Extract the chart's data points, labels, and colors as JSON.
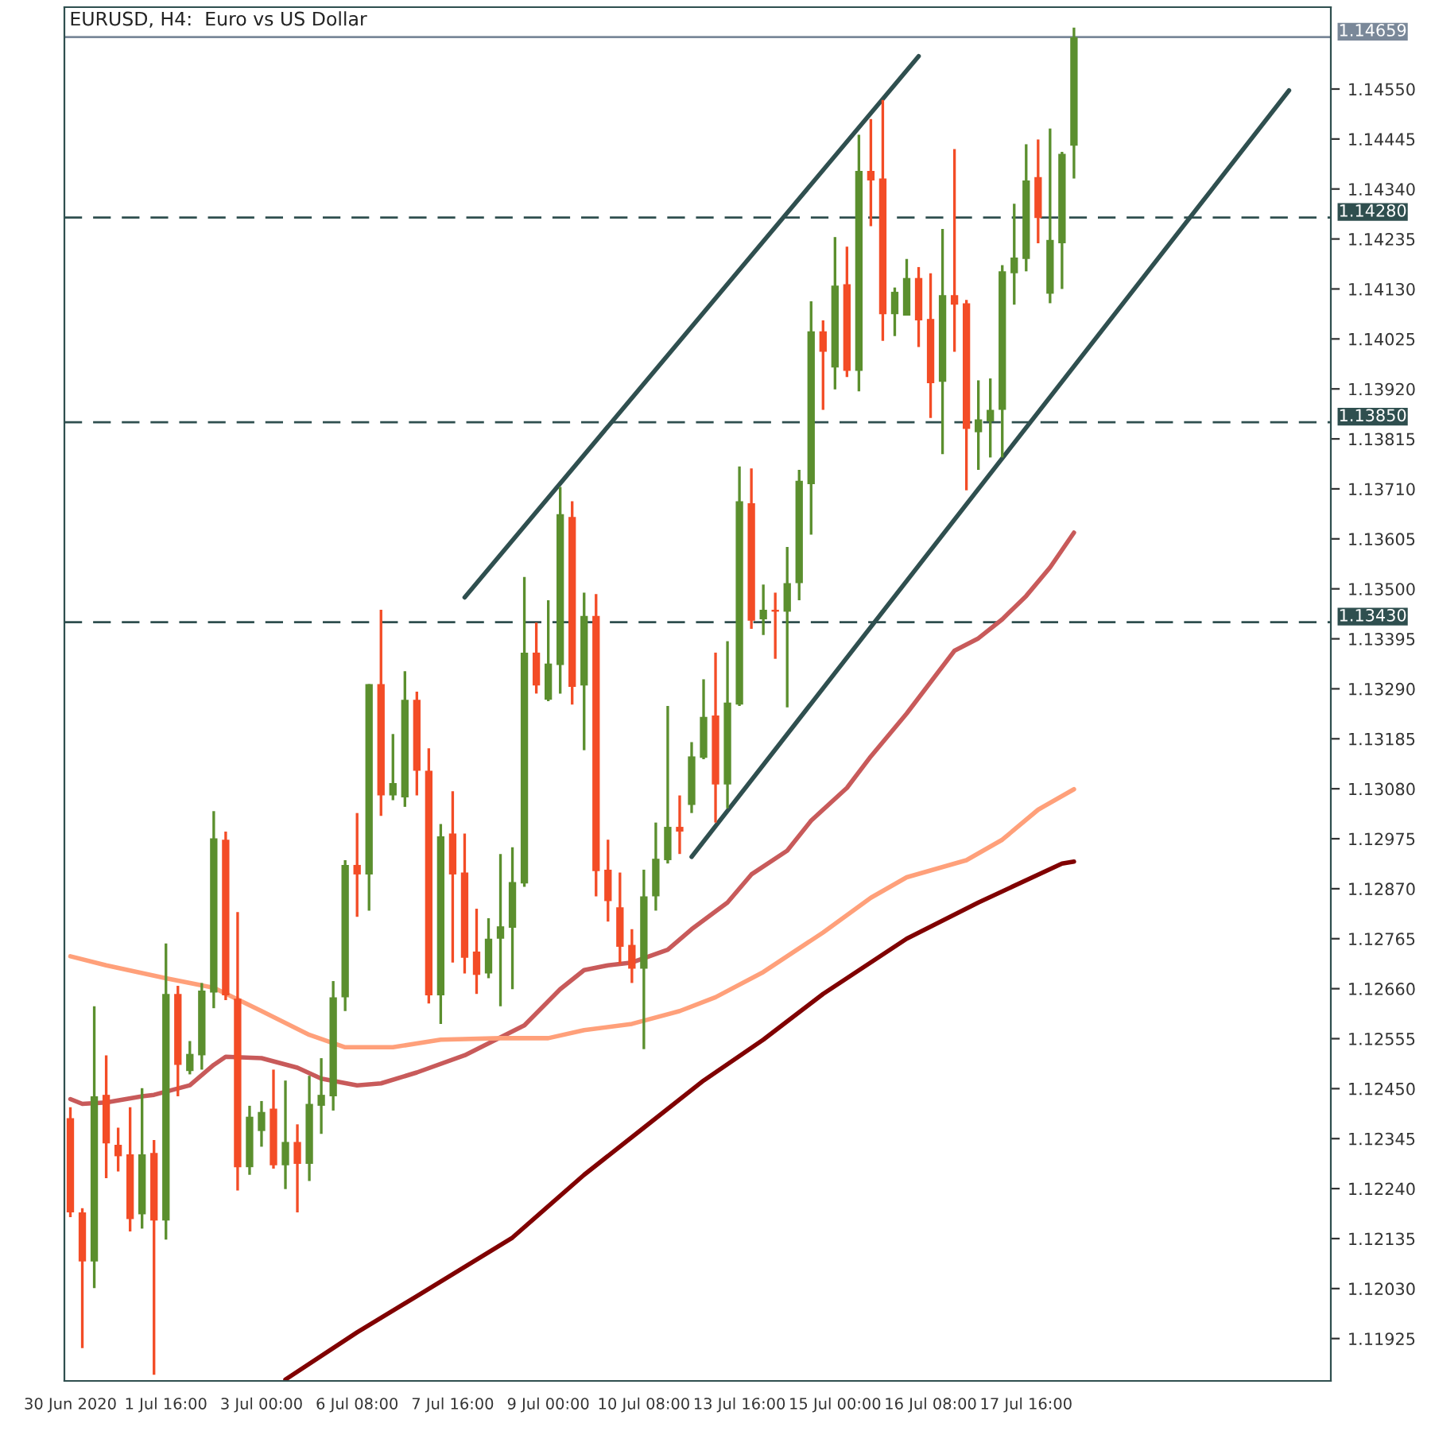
{
  "chart_data": {
    "type": "candlestick",
    "title": "EURUSD, H4:  Euro vs US Dollar",
    "categories": [
      "30 Jun 2020",
      null,
      null,
      null,
      null,
      null,
      null,
      null,
      "1 Jul 16:00",
      null,
      null,
      null,
      null,
      null,
      null,
      null,
      "3 Jul 00:00",
      null,
      null,
      null,
      null,
      null,
      null,
      null,
      "6 Jul 08:00",
      null,
      null,
      null,
      null,
      null,
      null,
      null,
      "7 Jul 16:00",
      null,
      null,
      null,
      null,
      null,
      null,
      null,
      "9 Jul 00:00",
      null,
      null,
      null,
      null,
      null,
      null,
      null,
      "10 Jul 08:00",
      null,
      null,
      null,
      null,
      null,
      null,
      null,
      "13 Jul 16:00",
      null,
      null,
      null,
      null,
      null,
      null,
      null,
      "15 Jul 00:00",
      null,
      null,
      null,
      null,
      null,
      null,
      null,
      "16 Jul 08:00",
      null,
      null,
      null,
      null,
      null,
      null,
      null,
      "17 Jul 16:00",
      null,
      null,
      null,
      null,
      null,
      null,
      null,
      null,
      null,
      null,
      null,
      null,
      null,
      null,
      null,
      null,
      null,
      null,
      null,
      null,
      null,
      null,
      null,
      null,
      null
    ],
    "ohlc": [
      [
        1.12388,
        1.12411,
        1.1218,
        1.1219
      ],
      [
        1.1219,
        1.12199,
        1.11905,
        1.12087
      ],
      [
        1.12087,
        1.12623,
        1.12031,
        1.12434
      ],
      [
        1.12437,
        1.1252,
        1.12262,
        1.12335
      ],
      [
        1.12332,
        1.12368,
        1.12276,
        1.12308
      ],
      [
        1.12312,
        1.12411,
        1.1215,
        1.12176
      ],
      [
        1.12186,
        1.12451,
        1.12156,
        1.12312
      ],
      [
        1.12315,
        1.12342,
        1.11849,
        1.12173
      ],
      [
        1.12173,
        1.12755,
        1.12133,
        1.12649
      ],
      [
        1.12649,
        1.12666,
        1.12434,
        1.125
      ],
      [
        1.12487,
        1.1255,
        1.1248,
        1.12523
      ],
      [
        1.1252,
        1.12672,
        1.1249,
        1.12656
      ],
      [
        1.12652,
        1.13033,
        1.12619,
        1.12976
      ],
      [
        1.12973,
        1.1299,
        1.12636,
        1.12646
      ],
      [
        1.12639,
        1.12821,
        1.12236,
        1.12285
      ],
      [
        1.12285,
        1.12414,
        1.12269,
        1.12391
      ],
      [
        1.12361,
        1.12424,
        1.12328,
        1.12401
      ],
      [
        1.12408,
        1.1249,
        1.12282,
        1.12289
      ],
      [
        1.12289,
        1.12467,
        1.12239,
        1.12338
      ],
      [
        1.12338,
        1.12375,
        1.1219,
        1.12292
      ],
      [
        1.12292,
        1.12477,
        1.12256,
        1.12418
      ],
      [
        1.12414,
        1.12514,
        1.12355,
        1.12437
      ],
      [
        1.12434,
        1.12676,
        1.12404,
        1.12642
      ],
      [
        1.12642,
        1.1293,
        1.12613,
        1.1292
      ],
      [
        1.1292,
        1.13029,
        1.12811,
        1.129
      ],
      [
        1.129,
        1.133,
        1.12824,
        1.133
      ],
      [
        1.133,
        1.13456,
        1.13023,
        1.13066
      ],
      [
        1.13066,
        1.13195,
        1.13056,
        1.13092
      ],
      [
        1.13062,
        1.13327,
        1.13042,
        1.13267
      ],
      [
        1.13267,
        1.13284,
        1.13066,
        1.13118
      ],
      [
        1.13118,
        1.13165,
        1.12629,
        1.12646
      ],
      [
        1.12646,
        1.13006,
        1.12586,
        1.1298
      ],
      [
        1.12986,
        1.13075,
        1.12715,
        1.129
      ],
      [
        1.12904,
        1.12986,
        1.12692,
        1.12725
      ],
      [
        1.12738,
        1.12828,
        1.12649,
        1.12689
      ],
      [
        1.12692,
        1.12808,
        1.12682,
        1.12765
      ],
      [
        1.12765,
        1.12943,
        1.12623,
        1.12791
      ],
      [
        1.12788,
        1.12957,
        1.12659,
        1.12884
      ],
      [
        1.12881,
        1.13525,
        1.12874,
        1.13366
      ],
      [
        1.13366,
        1.13429,
        1.1328,
        1.13297
      ],
      [
        1.13267,
        1.13476,
        1.13264,
        1.13343
      ],
      [
        1.1334,
        1.13714,
        1.1328,
        1.13657
      ],
      [
        1.13651,
        1.13684,
        1.13257,
        1.13294
      ],
      [
        1.13297,
        1.13492,
        1.13161,
        1.13443
      ],
      [
        1.13443,
        1.13489,
        1.12854,
        1.12907
      ],
      [
        1.1291,
        1.12973,
        1.12801,
        1.12844
      ],
      [
        1.12831,
        1.12904,
        1.12712,
        1.12748
      ],
      [
        1.12752,
        1.12785,
        1.12672,
        1.12702
      ],
      [
        1.12702,
        1.1291,
        1.12533,
        1.12854
      ],
      [
        1.12854,
        1.13009,
        1.12824,
        1.12933
      ],
      [
        1.1293,
        1.13254,
        1.12923,
        1.13
      ],
      [
        1.13,
        1.13066,
        1.12943,
        1.1299
      ],
      [
        1.13046,
        1.13178,
        1.13029,
        1.13148
      ],
      [
        1.13145,
        1.1331,
        1.13142,
        1.13231
      ],
      [
        1.13234,
        1.13366,
        1.13009,
        1.13089
      ],
      [
        1.13089,
        1.1339,
        1.13039,
        1.13261
      ],
      [
        1.13257,
        1.13757,
        1.13254,
        1.13684
      ],
      [
        1.1368,
        1.13753,
        1.13416,
        1.13433
      ],
      [
        1.13436,
        1.13509,
        1.13403,
        1.13456
      ],
      [
        1.13456,
        1.13492,
        1.13353,
        1.13452
      ],
      [
        1.13452,
        1.13588,
        1.13251,
        1.13512
      ],
      [
        1.13512,
        1.1375,
        1.13476,
        1.13727
      ],
      [
        1.1372,
        1.14104,
        1.13614,
        1.14041
      ],
      [
        1.14041,
        1.14064,
        1.13876,
        1.13998
      ],
      [
        1.13965,
        1.14239,
        1.13919,
        1.14137
      ],
      [
        1.1414,
        1.14219,
        1.13945,
        1.13958
      ],
      [
        1.13958,
        1.14454,
        1.13915,
        1.14378
      ],
      [
        1.14378,
        1.14487,
        1.14262,
        1.14358
      ],
      [
        1.14362,
        1.14527,
        1.14021,
        1.14077
      ],
      [
        1.14077,
        1.14133,
        1.14031,
        1.14124
      ],
      [
        1.14074,
        1.14193,
        1.14074,
        1.14153
      ],
      [
        1.14153,
        1.14176,
        1.14008,
        1.14064
      ],
      [
        1.14067,
        1.14163,
        1.13859,
        1.13932
      ],
      [
        1.13935,
        1.14256,
        1.13783,
        1.14117
      ],
      [
        1.14117,
        1.14424,
        1.13998,
        1.14097
      ],
      [
        1.141,
        1.14107,
        1.13707,
        1.13836
      ],
      [
        1.13829,
        1.13938,
        1.1375,
        1.13856
      ],
      [
        1.13852,
        1.13942,
        1.13776,
        1.13876
      ],
      [
        1.13876,
        1.1418,
        1.13776,
        1.14167
      ],
      [
        1.14163,
        1.14309,
        1.14097,
        1.14196
      ],
      [
        1.14193,
        1.14434,
        1.14167,
        1.14358
      ],
      [
        1.14365,
        1.14444,
        1.14226,
        1.14279
      ],
      [
        1.1412,
        1.14467,
        1.141,
        1.14233
      ],
      [
        1.14226,
        1.14418,
        1.1413,
        1.14414
      ],
      [
        1.14431,
        1.14679,
        1.14362,
        1.14659
      ],
      null,
      null,
      null,
      null,
      null,
      null,
      null,
      null,
      null,
      null,
      null,
      null,
      null,
      null,
      null,
      null,
      null,
      null,
      null,
      null,
      null
    ],
    "colors": [
      "#f34c26",
      "#f34c26",
      "#5b8f2e",
      "#f34c26",
      "#f34c26",
      "#f34c26",
      "#5b8f2e",
      "#f34c26",
      "#5b8f2e",
      "#f34c26",
      "#5b8f2e",
      "#5b8f2e",
      "#5b8f2e",
      "#f34c26",
      "#f34c26",
      "#5b8f2e",
      "#5b8f2e",
      "#f34c26",
      "#5b8f2e",
      "#f34c26",
      "#5b8f2e",
      "#5b8f2e",
      "#5b8f2e",
      "#5b8f2e",
      "#f34c26",
      "#5b8f2e",
      "#f34c26",
      "#5b8f2e",
      "#5b8f2e",
      "#f34c26",
      "#f34c26",
      "#5b8f2e",
      "#f34c26",
      "#f34c26",
      "#f34c26",
      "#5b8f2e",
      "#5b8f2e",
      "#5b8f2e",
      "#5b8f2e",
      "#f34c26",
      "#5b8f2e",
      "#5b8f2e",
      "#f34c26",
      "#5b8f2e",
      "#f34c26",
      "#f34c26",
      "#f34c26",
      "#f34c26",
      "#5b8f2e",
      "#5b8f2e",
      "#5b8f2e",
      "#f34c26",
      "#5b8f2e",
      "#5b8f2e",
      "#f34c26",
      "#5b8f2e",
      "#5b8f2e",
      "#f34c26",
      "#5b8f2e",
      "#f34c26",
      "#5b8f2e",
      "#5b8f2e",
      "#5b8f2e",
      "#f34c26",
      "#5b8f2e",
      "#f34c26",
      "#5b8f2e",
      "#f34c26",
      "#f34c26",
      "#5b8f2e",
      "#5b8f2e",
      "#f34c26",
      "#f34c26",
      "#5b8f2e",
      "#f34c26",
      "#f34c26",
      "#5b8f2e",
      "#5b8f2e",
      "#5b8f2e",
      "#5b8f2e",
      "#5b8f2e",
      "#f34c26",
      "#5b8f2e",
      "#5b8f2e",
      "#5b8f2e",
      null,
      null,
      null,
      null,
      null,
      null,
      null,
      null,
      null,
      null,
      null,
      null,
      null,
      null,
      null,
      null,
      null,
      null,
      null,
      null,
      null
    ],
    "series": [
      {
        "type": "line",
        "color": "#c85a5a",
        "values": [
          1.12428,
          1.12418,
          null,
          1.12421,
          null,
          null,
          1.12434,
          1.12437,
          null,
          null,
          1.12457,
          null,
          1.125,
          1.12517,
          null,
          null,
          1.12514,
          null,
          null,
          1.12494,
          null,
          1.12471,
          null,
          null,
          1.12457,
          null,
          1.12461,
          null,
          null,
          1.12484,
          null,
          null,
          null,
          1.1252,
          null,
          null,
          null,
          null,
          1.12583,
          null,
          null,
          1.12659,
          null,
          1.12699,
          null,
          1.12709,
          null,
          1.12715,
          null,
          null,
          1.12742,
          null,
          1.12785,
          null,
          null,
          1.12841,
          null,
          1.129,
          null,
          null,
          1.1295,
          null,
          1.13013,
          null,
          null,
          1.13082,
          null,
          1.13148,
          null,
          null,
          1.13238,
          null,
          1.13304,
          null,
          1.1337,
          null,
          1.13396,
          null,
          1.13436,
          null,
          1.13485,
          null,
          1.13545,
          null,
          1.13618,
          null,
          null,
          null,
          null,
          null,
          null,
          null,
          null,
          null,
          null,
          null,
          null,
          null,
          null,
          null,
          null,
          null,
          null,
          null,
          null,
          null
        ]
      },
      {
        "type": "line",
        "color": "#ffa07a",
        "values": [
          1.12728,
          null,
          null,
          1.12709,
          null,
          null,
          null,
          null,
          1.12682,
          null,
          null,
          null,
          1.12662,
          null,
          null,
          null,
          1.12613,
          null,
          null,
          null,
          1.12563,
          null,
          null,
          1.12537,
          null,
          null,
          null,
          1.12537,
          null,
          null,
          null,
          1.12553,
          null,
          null,
          null,
          null,
          1.12556,
          null,
          null,
          null,
          1.12556,
          null,
          null,
          1.12573,
          null,
          null,
          null,
          1.12586,
          null,
          null,
          null,
          1.12613,
          null,
          null,
          1.12642,
          null,
          null,
          null,
          1.12695,
          null,
          null,
          null,
          null,
          1.12778,
          null,
          null,
          null,
          1.12851,
          null,
          null,
          1.12894,
          null,
          null,
          null,
          null,
          1.1293,
          null,
          null,
          1.12973,
          null,
          null,
          1.13036,
          null,
          null,
          1.13079,
          null,
          null,
          null,
          null,
          null,
          null,
          null,
          null,
          null,
          null,
          null,
          null,
          null,
          null,
          null,
          null,
          null,
          null,
          null,
          null,
          null
        ]
      },
      {
        "type": "line",
        "color": "#800000",
        "values": [
          null,
          null,
          null,
          null,
          null,
          null,
          null,
          null,
          null,
          null,
          null,
          null,
          null,
          null,
          null,
          null,
          null,
          null,
          1.11839,
          null,
          null,
          null,
          null,
          null,
          1.11938,
          null,
          null,
          null,
          null,
          1.12014,
          null,
          null,
          null,
          null,
          null,
          null,
          null,
          1.12137,
          null,
          null,
          null,
          null,
          null,
          1.12269,
          null,
          null,
          null,
          null,
          1.12368,
          null,
          null,
          null,
          null,
          1.12467,
          null,
          null,
          null,
          null,
          1.12553,
          null,
          null,
          null,
          null,
          1.12649,
          null,
          null,
          null,
          null,
          null,
          null,
          1.12765,
          null,
          null,
          null,
          null,
          null,
          1.12841,
          null,
          null,
          null,
          null,
          null,
          null,
          1.12923,
          1.12927,
          null,
          null,
          null,
          null,
          null,
          null,
          null,
          null,
          null,
          null,
          null,
          null,
          null,
          null,
          null,
          null,
          null,
          null,
          null,
          null,
          null
        ]
      },
      {
        "type": "line",
        "color": "#2f4f4f",
        "values": [
          null,
          null,
          null,
          null,
          null,
          null,
          null,
          null,
          null,
          null,
          null,
          null,
          null,
          null,
          null,
          null,
          null,
          null,
          null,
          null,
          null,
          null,
          null,
          null,
          null,
          null,
          null,
          null,
          null,
          null,
          null,
          null,
          null,
          1.13482,
          null,
          null,
          null,
          null,
          null,
          null,
          null,
          null,
          null,
          null,
          null,
          null,
          null,
          null,
          null,
          null,
          null,
          null,
          null,
          null,
          null,
          null,
          null,
          null,
          null,
          null,
          null,
          null,
          null,
          null,
          null,
          null,
          null,
          null,
          null,
          null,
          null,
          1.14619,
          null,
          null,
          null,
          null,
          null,
          null,
          null,
          null,
          null,
          null,
          null,
          null,
          null,
          null,
          null,
          null,
          null,
          null,
          null,
          null,
          null,
          null,
          null,
          null,
          null,
          null,
          null,
          null,
          null,
          null,
          null,
          null,
          null,
          null
        ]
      },
      {
        "type": "line",
        "color": "#2f4f4f",
        "values": [
          null,
          null,
          null,
          null,
          null,
          null,
          null,
          null,
          null,
          null,
          null,
          null,
          null,
          null,
          null,
          null,
          null,
          null,
          null,
          null,
          null,
          null,
          null,
          null,
          null,
          null,
          null,
          null,
          null,
          null,
          null,
          null,
          null,
          null,
          null,
          null,
          null,
          null,
          null,
          null,
          null,
          null,
          null,
          null,
          null,
          null,
          null,
          null,
          null,
          null,
          null,
          null,
          1.12937,
          null,
          null,
          null,
          null,
          null,
          null,
          null,
          null,
          null,
          null,
          null,
          null,
          null,
          null,
          null,
          null,
          null,
          null,
          null,
          null,
          null,
          null,
          null,
          null,
          null,
          null,
          null,
          null,
          null,
          null,
          null,
          null,
          null,
          null,
          null,
          null,
          null,
          null,
          null,
          null,
          null,
          null,
          null,
          null,
          null,
          null,
          null,
          null,
          null,
          1.14547,
          null,
          null,
          null
        ]
      }
    ],
    "ylim": [
      1.11836,
      1.14722
    ],
    "yticks": [
      {
        "value": 1.11925,
        "label": "1.11925"
      },
      {
        "value": 1.1203,
        "label": "1.12030"
      },
      {
        "value": 1.12135,
        "label": "1.12135"
      },
      {
        "value": 1.1224,
        "label": "1.12240"
      },
      {
        "value": 1.12345,
        "label": "1.12345"
      },
      {
        "value": 1.1245,
        "label": "1.12450"
      },
      {
        "value": 1.12555,
        "label": "1.12555"
      },
      {
        "value": 1.1266,
        "label": "1.12660"
      },
      {
        "value": 1.12765,
        "label": "1.12765"
      },
      {
        "value": 1.1287,
        "label": "1.12870"
      },
      {
        "value": 1.12975,
        "label": "1.12975"
      },
      {
        "value": 1.1308,
        "label": "1.13080"
      },
      {
        "value": 1.13185,
        "label": "1.13185"
      },
      {
        "value": 1.1329,
        "label": "1.13290"
      },
      {
        "value": 1.13395,
        "label": "1.13395"
      },
      {
        "value": 1.135,
        "label": "1.13500"
      },
      {
        "value": 1.13605,
        "label": "1.13605"
      },
      {
        "value": 1.1371,
        "label": "1.13710"
      },
      {
        "value": 1.13815,
        "label": "1.13815"
      },
      {
        "value": 1.1392,
        "label": "1.13920"
      },
      {
        "value": 1.14025,
        "label": "1.14025"
      },
      {
        "value": 1.1413,
        "label": "1.14130"
      },
      {
        "value": 1.14235,
        "label": "1.14235"
      },
      {
        "value": 1.1434,
        "label": "1.14340"
      },
      {
        "value": 1.14445,
        "label": "1.14445"
      },
      {
        "value": 1.1455,
        "label": "1.14550"
      }
    ],
    "ref_lines": [
      {
        "axis": "y",
        "value": 1.14659,
        "label": "1.14659",
        "color": "#7a8899",
        "line_style": "solid"
      },
      {
        "axis": "y",
        "value": 1.1428,
        "label": "1.14280",
        "color": "#2f4f4f",
        "line_style": "dashed"
      },
      {
        "axis": "y",
        "value": 1.1385,
        "label": "1.13850",
        "color": "#2f4f4f",
        "line_style": "dashed"
      },
      {
        "axis": "y",
        "value": 1.1343,
        "label": "1.13430",
        "color": "#2f4f4f",
        "line_style": "dashed"
      }
    ],
    "grid": false
  }
}
